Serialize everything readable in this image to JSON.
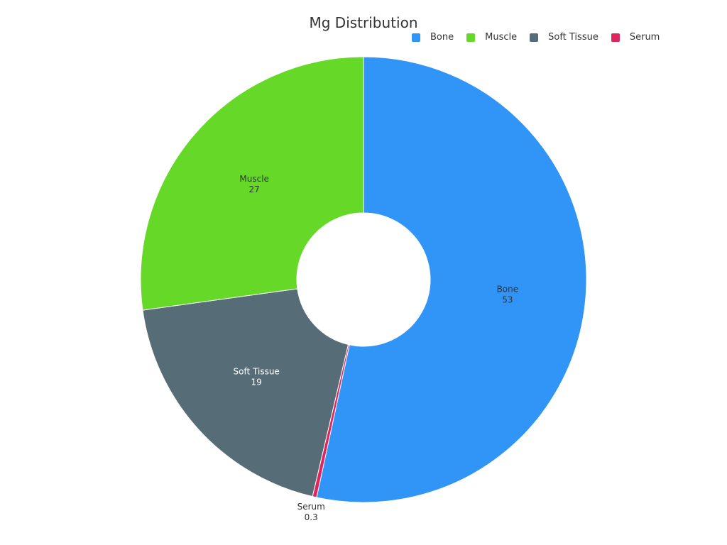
{
  "chart_data": {
    "type": "pie",
    "donut": true,
    "title": "Mg Distribution",
    "legend_position": "top-right",
    "slices": [
      {
        "label": "Bone",
        "value": 53,
        "value_label": "53",
        "color": "#3194F7",
        "label_color": "#333333"
      },
      {
        "label": "Serum",
        "value": 0.3,
        "value_label": "0.3",
        "color": "#E0245E",
        "label_color": "#333333"
      },
      {
        "label": "Soft Tissue",
        "value": 19,
        "value_label": "19",
        "color": "#566D78",
        "label_color": "#ffffff"
      },
      {
        "label": "Muscle",
        "value": 27,
        "value_label": "27",
        "color": "#66D928",
        "label_color": "#333333"
      }
    ],
    "legend": [
      {
        "label": "Bone",
        "color": "#3194F7"
      },
      {
        "label": "Muscle",
        "color": "#66D928"
      },
      {
        "label": "Soft Tissue",
        "color": "#566D78"
      },
      {
        "label": "Serum",
        "color": "#E0245E"
      }
    ]
  }
}
